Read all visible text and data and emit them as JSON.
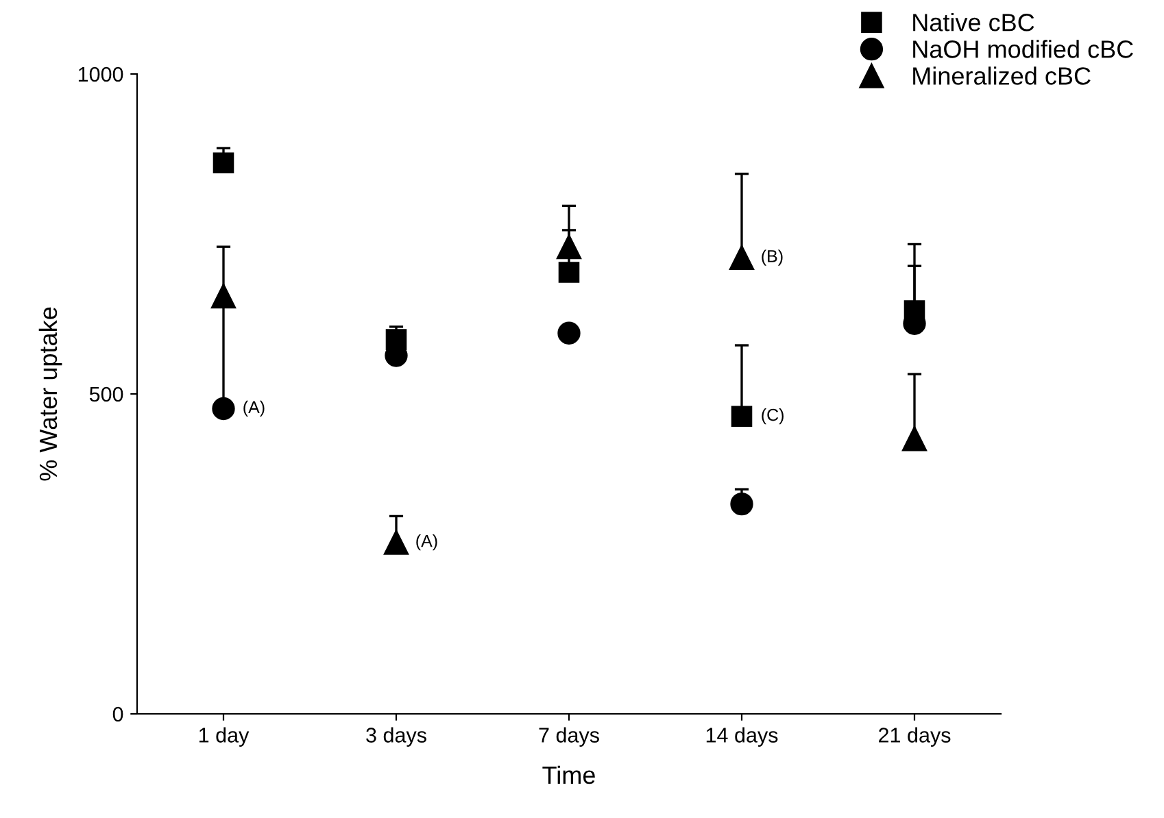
{
  "chart_data": {
    "type": "scatter",
    "xlabel": "Time",
    "ylabel": "% Water uptake",
    "categories": [
      "1 day",
      "3 days",
      "7 days",
      "14 days",
      "21 days"
    ],
    "ylim": [
      0,
      1000
    ],
    "yticks": [
      0,
      500,
      1000
    ],
    "grid": false,
    "legend": "top right",
    "series": [
      {
        "name": "Native cBC",
        "color": "#000000",
        "marker": "square",
        "values": [
          861,
          585,
          690,
          465,
          630
        ],
        "errors": [
          [
            861,
            884
          ],
          [
            585,
            605
          ],
          [
            690,
            756
          ],
          [
            465,
            576
          ],
          [
            630,
            734
          ]
        ]
      },
      {
        "name": "NaOH modified cBC",
        "color": "#000000",
        "marker": "circle",
        "values": [
          477,
          560,
          595,
          328,
          610
        ],
        "errors": [
          [
            477,
            638
          ],
          null,
          null,
          [
            328,
            351
          ],
          [
            610,
            700
          ]
        ]
      },
      {
        "name": "Mineralized cBC",
        "color": "#000000",
        "marker": "triangle",
        "values": [
          653,
          268,
          730,
          713,
          430
        ],
        "errors": [
          [
            653,
            730
          ],
          [
            268,
            309
          ],
          [
            730,
            794
          ],
          [
            713,
            844
          ],
          [
            430,
            531
          ]
        ]
      }
    ],
    "annotations": [
      {
        "text": "(A)",
        "x": "1 day",
        "y": 477
      },
      {
        "text": "(A)",
        "x": "3 days",
        "y": 268
      },
      {
        "text": "(B)",
        "x": "14 days",
        "y": 713
      },
      {
        "text": "(C)",
        "x": "14 days",
        "y": 465
      }
    ]
  }
}
